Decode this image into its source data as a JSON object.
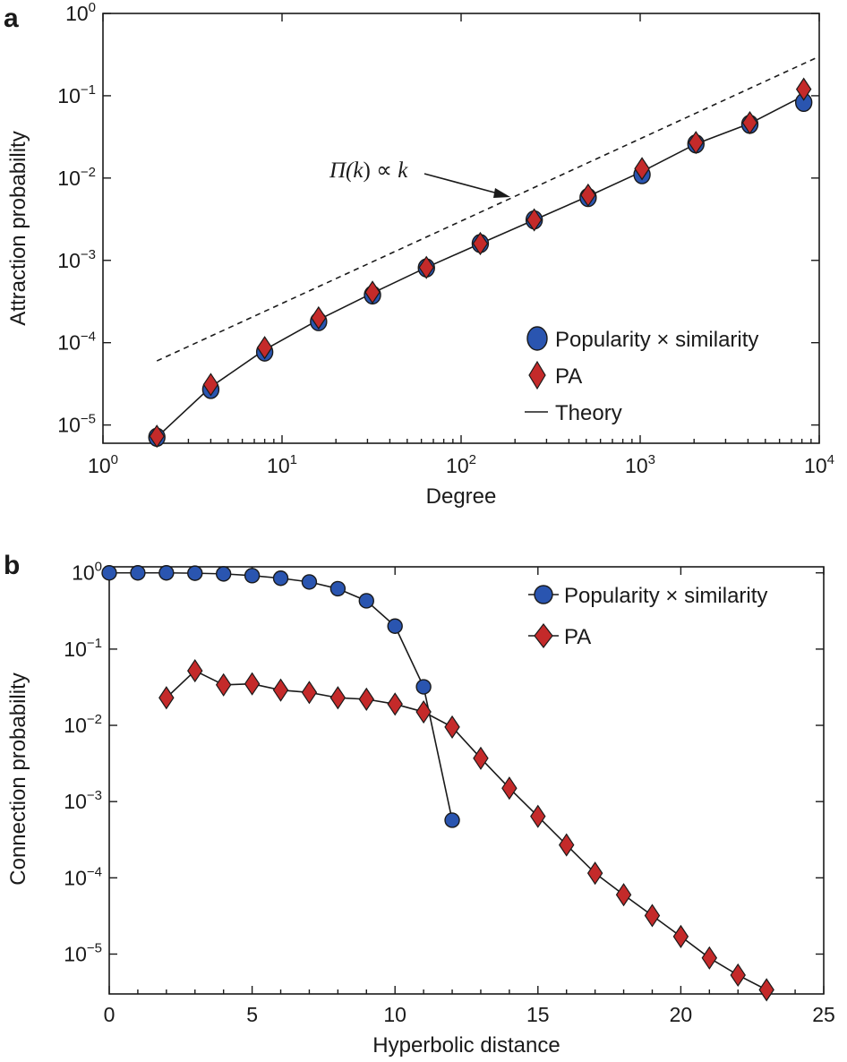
{
  "panels": [
    {
      "letter": "a",
      "xlabel": "Degree",
      "ylabel": "Attraction probability",
      "xticks": [
        {
          "base": "10",
          "exp": "0"
        },
        {
          "base": "10",
          "exp": "1"
        },
        {
          "base": "10",
          "exp": "2"
        },
        {
          "base": "10",
          "exp": "3"
        },
        {
          "base": "10",
          "exp": "4"
        }
      ],
      "yticks": [
        {
          "base": "10",
          "exp": "−5"
        },
        {
          "base": "10",
          "exp": "−4"
        },
        {
          "base": "10",
          "exp": "−3"
        },
        {
          "base": "10",
          "exp": "−2"
        },
        {
          "base": "10",
          "exp": "−1"
        },
        {
          "base": "10",
          "exp": "0"
        }
      ],
      "annotation": {
        "prefix": "Π(",
        "var": "k",
        "middle": ") ∝ ",
        "var2": "k"
      },
      "legend": [
        {
          "label": "Popularity × similarity"
        },
        {
          "label": "PA"
        },
        {
          "label": "Theory"
        }
      ]
    },
    {
      "letter": "b",
      "xlabel": "Hyperbolic distance",
      "ylabel": "Connection probability",
      "xticks": [
        "0",
        "5",
        "10",
        "15",
        "20",
        "25"
      ],
      "yticks": [
        {
          "base": "10",
          "exp": "−5"
        },
        {
          "base": "10",
          "exp": "−4"
        },
        {
          "base": "10",
          "exp": "−3"
        },
        {
          "base": "10",
          "exp": "−2"
        },
        {
          "base": "10",
          "exp": "−1"
        },
        {
          "base": "10",
          "exp": "0"
        }
      ],
      "legend": [
        {
          "label": "Popularity × similarity"
        },
        {
          "label": "PA"
        }
      ]
    }
  ],
  "colors": {
    "ps_marker": "#2a55b0",
    "pa_marker": "#c42a2a",
    "line": "#1a1a1a"
  },
  "chart_data": [
    {
      "type": "scatter",
      "xscale": "log",
      "yscale": "log",
      "xlim": [
        1,
        10000
      ],
      "ylim": [
        6e-06,
        1
      ],
      "x": [
        2,
        4,
        8,
        16,
        32,
        64,
        128,
        256,
        512,
        1024,
        2048,
        4096,
        8192
      ],
      "series": [
        {
          "name": "Popularity × similarity",
          "marker": "circle",
          "values": [
            7.1e-06,
            2.7e-05,
            7.7e-05,
            0.00018,
            0.00038,
            0.00081,
            0.0016,
            0.0031,
            0.0058,
            0.011,
            0.026,
            0.045,
            0.083
          ]
        },
        {
          "name": "PA",
          "marker": "diamond",
          "values": [
            7.3e-06,
            3.1e-05,
            8.7e-05,
            0.0002,
            0.00041,
            0.00082,
            0.0016,
            0.0031,
            0.0062,
            0.013,
            0.027,
            0.047,
            0.12
          ]
        },
        {
          "name": "Theory",
          "style": "solid-line",
          "values": [
            7.1e-06,
            2.9e-05,
            8.2e-05,
            0.00019,
            0.0004,
            0.00082,
            0.0016,
            0.0031,
            0.006,
            0.012,
            0.026,
            0.046,
            0.1
          ]
        },
        {
          "name": "Π(k) ∝ k",
          "style": "dashed-line",
          "x": [
            2,
            10000
          ],
          "values": [
            6e-05,
            0.3
          ]
        }
      ],
      "legend_position": "bottom-right"
    },
    {
      "type": "line",
      "xscale": "linear",
      "yscale": "log",
      "xlim": [
        0,
        25
      ],
      "ylim": [
        3e-06,
        1.2
      ],
      "series": [
        {
          "name": "Popularity × similarity",
          "marker": "circle",
          "x": [
            0,
            1,
            2,
            3,
            4,
            5,
            6,
            7,
            8,
            9,
            10,
            11,
            12
          ],
          "values": [
            1.0,
            1.0,
            1.0,
            0.99,
            0.97,
            0.92,
            0.85,
            0.76,
            0.62,
            0.43,
            0.2,
            0.032,
            0.00057
          ]
        },
        {
          "name": "PA",
          "marker": "diamond",
          "x": [
            2,
            3,
            4,
            5,
            6,
            7,
            8,
            9,
            10,
            11,
            12,
            13,
            14,
            15,
            16,
            17,
            18,
            19,
            20,
            21,
            22,
            23
          ],
          "values": [
            0.023,
            0.052,
            0.034,
            0.035,
            0.029,
            0.027,
            0.023,
            0.022,
            0.019,
            0.015,
            0.0095,
            0.0037,
            0.0015,
            0.00064,
            0.00027,
            0.000115,
            6e-05,
            3.2e-05,
            1.7e-05,
            8.9e-06,
            5.3e-06,
            3.4e-06
          ]
        }
      ],
      "legend_position": "top-right"
    }
  ]
}
